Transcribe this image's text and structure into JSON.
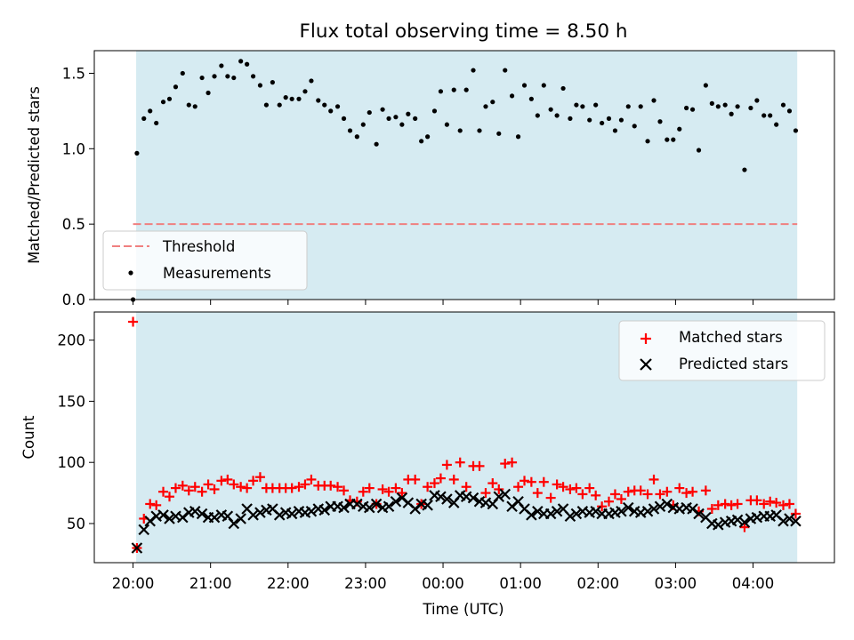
{
  "chart_data": [
    {
      "type": "scatter",
      "title": "Flux total observing time = 8.50 h",
      "ylabel": "Matched/Predicted stars",
      "ylim": [
        0,
        1.65
      ],
      "xlim": [
        -0.5,
        9.05
      ],
      "yticks": [
        {
          "v": 0.0,
          "label": "0.0"
        },
        {
          "v": 0.5,
          "label": "0.5"
        },
        {
          "v": 1.0,
          "label": "1.0"
        },
        {
          "v": 1.5,
          "label": "1.5"
        }
      ],
      "shaded_span": [
        0.04,
        8.57
      ],
      "shade_color": "#add8e6",
      "threshold": {
        "name": "Threshold",
        "y": 0.5,
        "x": [
          0.0,
          8.57
        ],
        "color": "#f08080"
      },
      "legend": {
        "position": "lower-left",
        "entries": [
          "Threshold",
          "Measurements"
        ]
      },
      "series": [
        {
          "name": "Measurements",
          "color": "#000000",
          "x": [
            0.0,
            0.05,
            0.14,
            0.22,
            0.3,
            0.39,
            0.47,
            0.55,
            0.64,
            0.72,
            0.8,
            0.89,
            0.97,
            1.05,
            1.14,
            1.22,
            1.3,
            1.39,
            1.47,
            1.55,
            1.64,
            1.72,
            1.8,
            1.89,
            1.97,
            2.05,
            2.14,
            2.22,
            2.3,
            2.39,
            2.47,
            2.55,
            2.64,
            2.72,
            2.8,
            2.89,
            2.97,
            3.05,
            3.14,
            3.22,
            3.3,
            3.39,
            3.47,
            3.55,
            3.64,
            3.72,
            3.8,
            3.89,
            3.97,
            4.05,
            4.14,
            4.22,
            4.3,
            4.39,
            4.47,
            4.55,
            4.64,
            4.72,
            4.8,
            4.89,
            4.97,
            5.05,
            5.14,
            5.22,
            5.3,
            5.39,
            5.47,
            5.55,
            5.64,
            5.72,
            5.8,
            5.89,
            5.97,
            6.05,
            6.14,
            6.22,
            6.3,
            6.39,
            6.47,
            6.55,
            6.64,
            6.72,
            6.8,
            6.89,
            6.97,
            7.05,
            7.14,
            7.22,
            7.3,
            7.39,
            7.47,
            7.55,
            7.64,
            7.72,
            7.8,
            7.89,
            7.97,
            8.05,
            8.14,
            8.22,
            8.3,
            8.39,
            8.47,
            8.55
          ],
          "y": [
            0.0,
            0.97,
            1.2,
            1.25,
            1.17,
            1.31,
            1.33,
            1.41,
            1.5,
            1.29,
            1.28,
            1.47,
            1.37,
            1.48,
            1.55,
            1.48,
            1.47,
            1.58,
            1.56,
            1.48,
            1.42,
            1.29,
            1.44,
            1.29,
            1.34,
            1.33,
            1.33,
            1.38,
            1.45,
            1.32,
            1.29,
            1.25,
            1.28,
            1.2,
            1.12,
            1.08,
            1.16,
            1.24,
            1.03,
            1.26,
            1.2,
            1.21,
            1.16,
            1.23,
            1.2,
            1.05,
            1.08,
            1.25,
            1.38,
            1.16,
            1.39,
            1.12,
            1.39,
            1.52,
            1.12,
            1.28,
            1.31,
            1.1,
            1.52,
            1.35,
            1.08,
            1.42,
            1.33,
            1.22,
            1.42,
            1.26,
            1.22,
            1.4,
            1.2,
            1.29,
            1.28,
            1.19,
            1.29,
            1.17,
            1.2,
            1.12,
            1.19,
            1.28,
            1.15,
            1.28,
            1.05,
            1.32,
            1.18,
            1.06,
            1.06,
            1.13,
            1.27,
            1.26,
            0.99,
            1.42,
            1.3,
            1.28,
            1.29,
            1.23,
            1.28,
            0.86,
            1.27,
            1.32,
            1.22,
            1.22,
            1.16,
            1.29,
            1.25,
            1.12
          ]
        }
      ]
    },
    {
      "type": "scatter",
      "ylabel": "Count",
      "xlabel": "Time (UTC)",
      "ylim": [
        18,
        223
      ],
      "xlim": [
        -0.5,
        9.05
      ],
      "yticks": [
        {
          "v": 50,
          "label": "50"
        },
        {
          "v": 100,
          "label": "100"
        },
        {
          "v": 150,
          "label": "150"
        },
        {
          "v": 200,
          "label": "200"
        }
      ],
      "xticks": [
        {
          "v": 0,
          "label": "20:00"
        },
        {
          "v": 1,
          "label": "21:00"
        },
        {
          "v": 2,
          "label": "22:00"
        },
        {
          "v": 3,
          "label": "23:00"
        },
        {
          "v": 4,
          "label": "00:00"
        },
        {
          "v": 5,
          "label": "01:00"
        },
        {
          "v": 6,
          "label": "02:00"
        },
        {
          "v": 7,
          "label": "03:00"
        },
        {
          "v": 8,
          "label": "04:00"
        }
      ],
      "shaded_span": [
        0.04,
        8.57
      ],
      "shade_color": "#add8e6",
      "legend": {
        "position": "top-right",
        "entries": [
          "Matched stars",
          "Predicted stars"
        ]
      },
      "series": [
        {
          "name": "Matched stars",
          "marker": "plus",
          "color": "#ff0000",
          "x": [
            0.0,
            0.05,
            0.14,
            0.22,
            0.3,
            0.39,
            0.47,
            0.55,
            0.64,
            0.72,
            0.8,
            0.89,
            0.97,
            1.05,
            1.14,
            1.22,
            1.3,
            1.39,
            1.47,
            1.55,
            1.64,
            1.72,
            1.8,
            1.89,
            1.97,
            2.05,
            2.14,
            2.22,
            2.3,
            2.39,
            2.47,
            2.55,
            2.64,
            2.72,
            2.8,
            2.89,
            2.97,
            3.05,
            3.14,
            3.22,
            3.3,
            3.39,
            3.47,
            3.55,
            3.64,
            3.72,
            3.8,
            3.89,
            3.97,
            4.05,
            4.14,
            4.22,
            4.3,
            4.39,
            4.47,
            4.55,
            4.64,
            4.72,
            4.8,
            4.89,
            4.97,
            5.05,
            5.14,
            5.22,
            5.3,
            5.39,
            5.47,
            5.55,
            5.64,
            5.72,
            5.8,
            5.89,
            5.97,
            6.05,
            6.14,
            6.22,
            6.3,
            6.39,
            6.47,
            6.55,
            6.64,
            6.72,
            6.8,
            6.89,
            6.97,
            7.05,
            7.14,
            7.22,
            7.3,
            7.39,
            7.47,
            7.55,
            7.64,
            7.72,
            7.8,
            7.89,
            7.97,
            8.05,
            8.14,
            8.22,
            8.3,
            8.39,
            8.47,
            8.55
          ],
          "y": [
            215,
            30,
            54,
            66,
            65,
            76,
            72,
            79,
            81,
            77,
            80,
            76,
            82,
            78,
            85,
            86,
            82,
            80,
            79,
            85,
            88,
            79,
            79,
            79,
            79,
            79,
            80,
            82,
            86,
            81,
            81,
            81,
            80,
            77,
            69,
            68,
            76,
            79,
            66,
            78,
            76,
            79,
            75,
            86,
            86,
            66,
            80,
            83,
            87,
            98,
            86,
            100,
            80,
            97,
            97,
            75,
            83,
            78,
            99,
            100,
            80,
            85,
            84,
            75,
            84,
            71,
            82,
            80,
            78,
            79,
            74,
            79,
            73,
            64,
            68,
            74,
            70,
            76,
            77,
            77,
            74,
            86,
            74,
            76,
            65,
            79,
            75,
            76,
            60,
            77,
            62,
            65,
            66,
            65,
            66,
            47,
            69,
            69,
            66,
            68,
            67,
            65,
            66,
            58
          ]
        },
        {
          "name": "Predicted stars",
          "marker": "x",
          "color": "#000000",
          "x": [
            0.05,
            0.14,
            0.22,
            0.3,
            0.39,
            0.47,
            0.55,
            0.64,
            0.72,
            0.8,
            0.89,
            0.97,
            1.05,
            1.14,
            1.22,
            1.3,
            1.39,
            1.47,
            1.55,
            1.64,
            1.72,
            1.8,
            1.89,
            1.97,
            2.05,
            2.14,
            2.22,
            2.3,
            2.39,
            2.47,
            2.55,
            2.64,
            2.72,
            2.8,
            2.89,
            2.97,
            3.05,
            3.14,
            3.22,
            3.3,
            3.39,
            3.47,
            3.55,
            3.64,
            3.72,
            3.8,
            3.89,
            3.97,
            4.05,
            4.14,
            4.22,
            4.3,
            4.39,
            4.47,
            4.55,
            4.64,
            4.72,
            4.8,
            4.89,
            4.97,
            5.05,
            5.14,
            5.22,
            5.3,
            5.39,
            5.47,
            5.55,
            5.64,
            5.72,
            5.8,
            5.89,
            5.97,
            6.05,
            6.14,
            6.22,
            6.3,
            6.39,
            6.47,
            6.55,
            6.64,
            6.72,
            6.8,
            6.89,
            6.97,
            7.05,
            7.14,
            7.22,
            7.3,
            7.39,
            7.47,
            7.55,
            7.64,
            7.72,
            7.8,
            7.89,
            7.97,
            8.05,
            8.14,
            8.22,
            8.3,
            8.39,
            8.47,
            8.55
          ],
          "y": [
            30,
            45,
            52,
            56,
            57,
            54,
            56,
            55,
            59,
            60,
            58,
            55,
            55,
            57,
            56,
            50,
            54,
            62,
            57,
            59,
            61,
            62,
            57,
            59,
            58,
            60,
            59,
            60,
            62,
            61,
            64,
            64,
            63,
            66,
            66,
            64,
            63,
            66,
            63,
            64,
            68,
            71,
            67,
            62,
            66,
            65,
            73,
            72,
            70,
            67,
            73,
            72,
            71,
            68,
            67,
            66,
            72,
            74,
            64,
            68,
            62,
            57,
            60,
            58,
            58,
            60,
            62,
            56,
            58,
            60,
            59,
            60,
            58,
            58,
            59,
            60,
            63,
            60,
            59,
            60,
            62,
            64,
            66,
            63,
            62,
            63,
            62,
            58,
            55,
            50,
            49,
            51,
            52,
            53,
            51,
            54,
            55,
            56,
            56,
            57,
            52,
            54,
            52
          ]
        }
      ]
    }
  ]
}
